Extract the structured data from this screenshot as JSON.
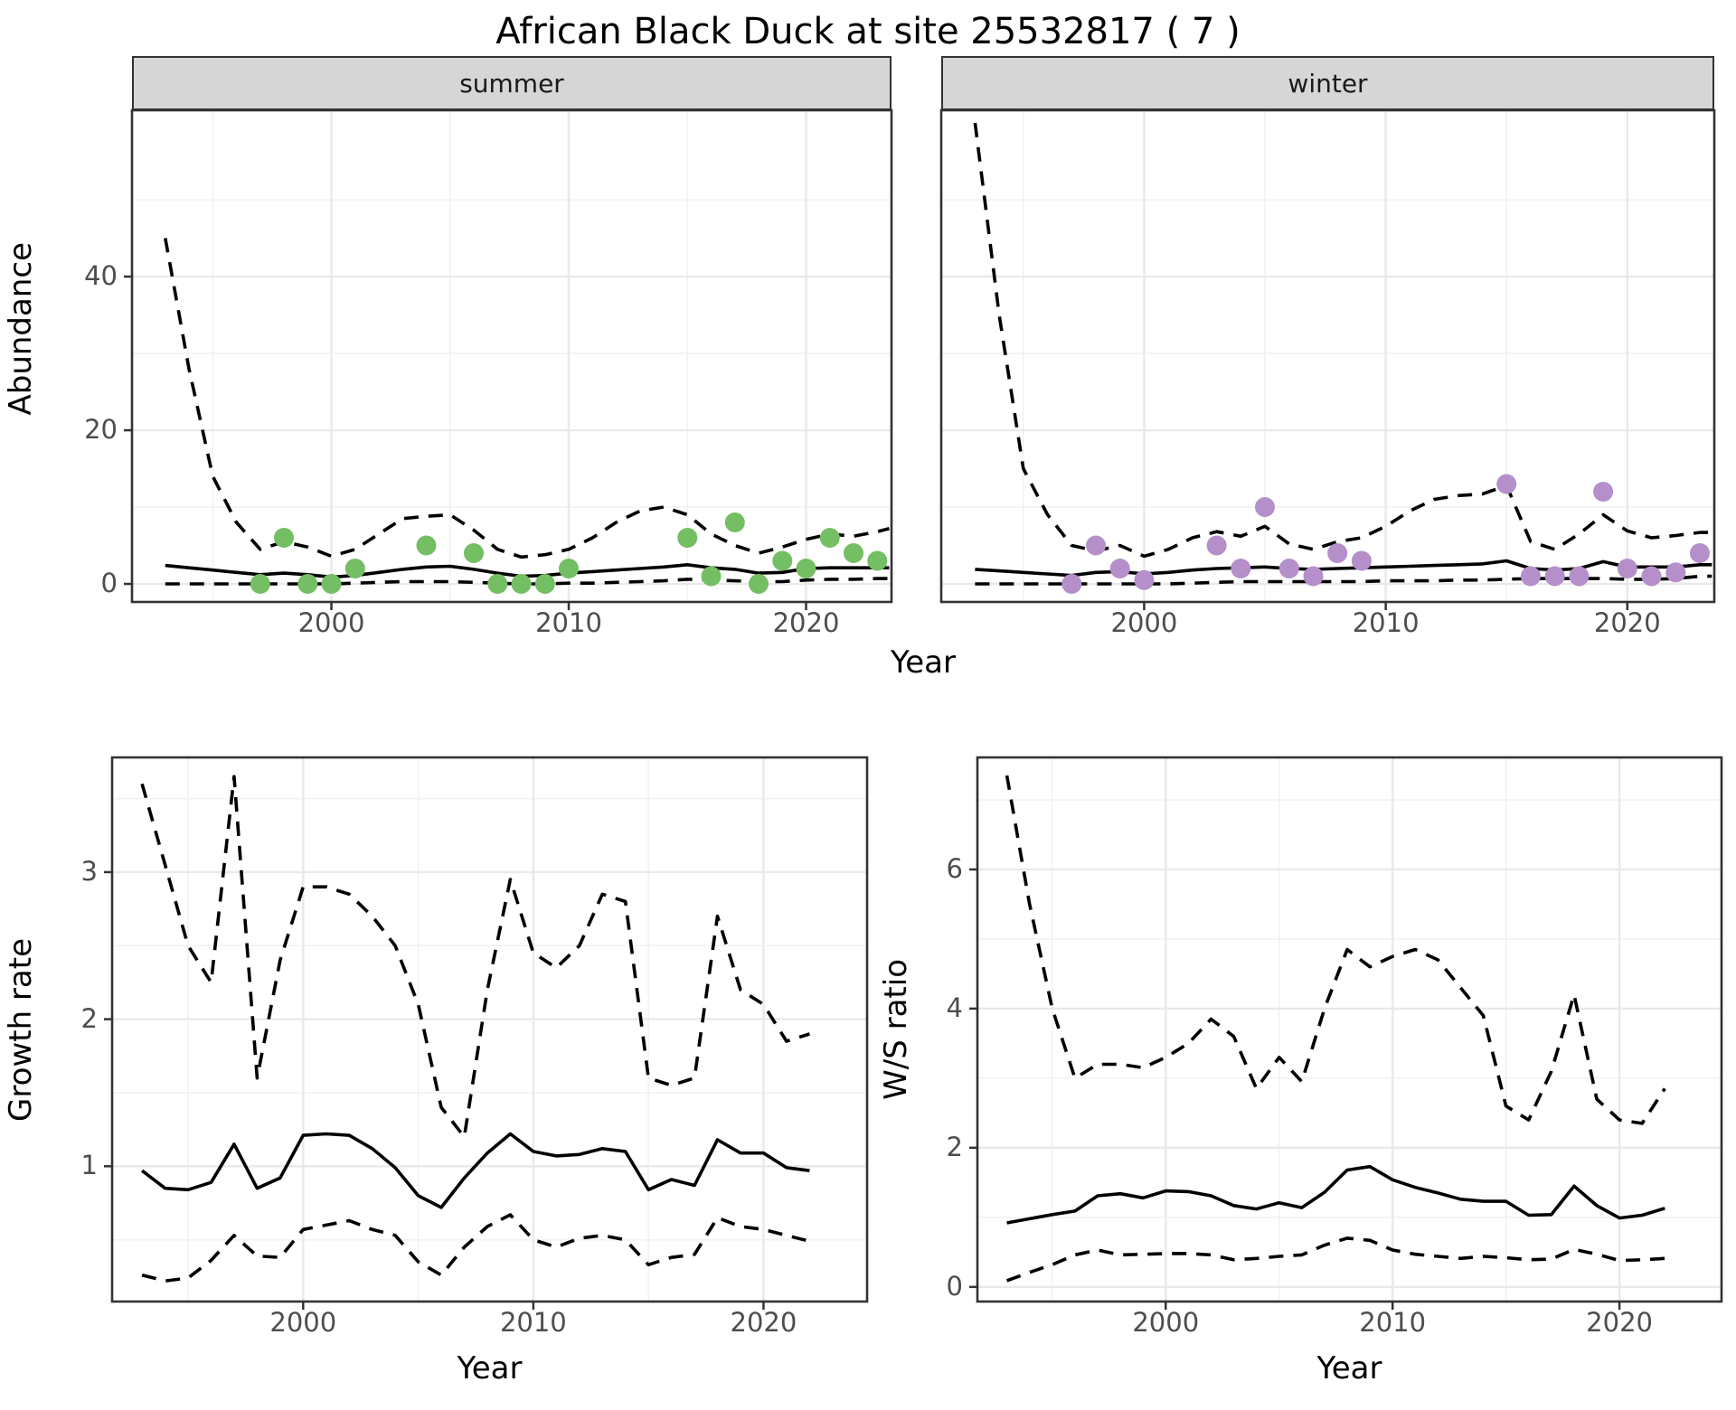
{
  "title": "African Black Duck at site 25532817 ( 7 )",
  "facets": {
    "summer_label": "summer",
    "winter_label": "winter"
  },
  "axes": {
    "top_y_title": "Abundance",
    "top_x_title": "Year",
    "bottom_left_y_title": "Growth rate",
    "bottom_left_x_title": "Year",
    "bottom_right_y_title": "W/S ratio",
    "bottom_right_x_title": "Year"
  },
  "colors": {
    "summer_point": "#74BE63",
    "winter_point": "#B48FC9",
    "line": "#000000",
    "grid_major": "#E9E9E9",
    "grid_minor": "#F2F2F2",
    "panel_border": "#333333",
    "strip_bg": "#D6D6D6",
    "tick_text": "#4D4D4D"
  },
  "chart_data": [
    {
      "id": "summer",
      "type": "line",
      "facet_label": "summer",
      "x_axis_title": "Year",
      "y_axis_title": "Abundance",
      "xlim": [
        1991.6,
        2023.6
      ],
      "ylim": [
        -2.35,
        61.65
      ],
      "xticks": [
        2000,
        2010,
        2020
      ],
      "xminor": [
        1995,
        2005,
        2015
      ],
      "yticks": [
        0,
        20,
        40
      ],
      "yminor": [
        10,
        30,
        50
      ],
      "show_y_ticks": true,
      "x_fit": [
        1993,
        1994,
        1995,
        1996,
        1997,
        1998,
        1999,
        2000,
        2001,
        2002,
        2003,
        2004,
        2005,
        2006,
        2007,
        2008,
        2009,
        2010,
        2011,
        2012,
        2013,
        2014,
        2015,
        2016,
        2017,
        2018,
        2019,
        2020,
        2021,
        2022,
        2023,
        2023.5
      ],
      "fit_series": [
        {
          "name": "upper_95ci",
          "style": "dashed",
          "y": [
            45,
            28,
            14,
            8,
            4.5,
            5.5,
            4.8,
            3.6,
            4.5,
            6.5,
            8.5,
            8.8,
            9,
            7,
            4.5,
            3.5,
            3.8,
            4.5,
            6,
            8,
            9.5,
            10,
            9,
            6.5,
            5,
            4,
            4.8,
            5.8,
            6.5,
            6.2,
            6.8,
            7.2
          ]
        },
        {
          "name": "median",
          "style": "solid",
          "y": [
            2.4,
            2.1,
            1.8,
            1.5,
            1.2,
            1.4,
            1.2,
            0.9,
            1.1,
            1.5,
            1.9,
            2.2,
            2.3,
            1.9,
            1.4,
            1,
            1.1,
            1.4,
            1.6,
            1.8,
            2,
            2.2,
            2.5,
            2.1,
            1.9,
            1.4,
            1.5,
            2,
            2.1,
            2.1,
            2.1,
            2.1
          ]
        },
        {
          "name": "lower_95ci",
          "style": "dashed",
          "y": [
            0,
            0,
            0,
            0,
            0,
            0,
            0,
            0,
            0.1,
            0.2,
            0.3,
            0.3,
            0.3,
            0.2,
            0.1,
            0,
            0,
            0.1,
            0.1,
            0.2,
            0.3,
            0.4,
            0.6,
            0.5,
            0.4,
            0.3,
            0.3,
            0.5,
            0.6,
            0.6,
            0.7,
            0.7
          ]
        }
      ],
      "points": {
        "name": "observed_summer_counts",
        "color": "#74BE63",
        "x": [
          1997,
          1998,
          1999,
          2000,
          2001,
          2004,
          2006,
          2007,
          2008,
          2009,
          2010,
          2015,
          2016,
          2017,
          2018,
          2019,
          2020,
          2021,
          2022,
          2023
        ],
        "y": [
          0,
          6,
          0,
          0,
          2,
          5,
          4,
          0,
          0,
          0,
          2,
          6,
          1,
          8,
          0,
          3,
          2,
          6,
          4,
          3
        ]
      }
    },
    {
      "id": "winter",
      "type": "line",
      "facet_label": "winter",
      "x_axis_title": "Year",
      "y_axis_title": "Abundance",
      "xlim": [
        1991.6,
        2023.6
      ],
      "ylim": [
        -2.35,
        61.65
      ],
      "xticks": [
        2000,
        2010,
        2020
      ],
      "xminor": [
        1995,
        2005,
        2015
      ],
      "yticks": [
        0,
        20,
        40
      ],
      "yminor": [
        10,
        30,
        50
      ],
      "show_y_ticks": false,
      "x_fit": [
        1993,
        1994,
        1995,
        1996,
        1997,
        1998,
        1999,
        2000,
        2001,
        2002,
        2003,
        2004,
        2005,
        2006,
        2007,
        2008,
        2009,
        2010,
        2011,
        2012,
        2013,
        2014,
        2015,
        2016,
        2017,
        2018,
        2019,
        2020,
        2021,
        2022,
        2023,
        2023.5
      ],
      "fit_series": [
        {
          "name": "upper_95ci",
          "style": "dashed",
          "y": [
            60,
            35,
            15,
            9,
            5,
            4.3,
            5,
            3.6,
            4.5,
            6,
            6.8,
            6.2,
            7.5,
            5.2,
            4.5,
            5.5,
            6,
            7.5,
            9.5,
            11,
            11.5,
            11.7,
            12.8,
            5.5,
            4.5,
            6.5,
            9,
            6.9,
            6,
            6.3,
            6.7,
            6.7
          ]
        },
        {
          "name": "median",
          "style": "solid",
          "y": [
            1.9,
            1.7,
            1.5,
            1.3,
            1.1,
            1.5,
            1.6,
            1.3,
            1.5,
            1.8,
            2,
            2.1,
            2.2,
            2,
            1.9,
            2,
            2.1,
            2.2,
            2.3,
            2.4,
            2.5,
            2.6,
            3,
            2,
            1.8,
            2,
            2.9,
            2.2,
            2.2,
            2.2,
            2.5,
            2.5
          ]
        },
        {
          "name": "lower_95ci",
          "style": "dashed",
          "y": [
            0,
            0,
            0,
            0,
            0,
            0,
            0,
            0,
            0,
            0.1,
            0.2,
            0.3,
            0.3,
            0.3,
            0.3,
            0.3,
            0.3,
            0.4,
            0.4,
            0.4,
            0.5,
            0.5,
            0.6,
            0.7,
            0.7,
            0.7,
            0.7,
            0.6,
            0.6,
            0.7,
            1,
            1
          ]
        }
      ],
      "points": {
        "name": "observed_winter_counts",
        "color": "#B48FC9",
        "x": [
          1997,
          1998,
          1999,
          2000,
          2003,
          2004,
          2005,
          2006,
          2007,
          2008,
          2009,
          2015,
          2016,
          2017,
          2018,
          2019,
          2020,
          2021,
          2022,
          2023
        ],
        "y": [
          0,
          5,
          2,
          0.5,
          5,
          2,
          10,
          2,
          1,
          4,
          3,
          13,
          1,
          1,
          1,
          12,
          2,
          1,
          1.5,
          4
        ]
      }
    },
    {
      "id": "growth_rate",
      "type": "line",
      "facet_label": null,
      "x_axis_title": "Year",
      "y_axis_title": "Growth rate",
      "xlim": [
        1991.7,
        2024.5
      ],
      "ylim": [
        0.08,
        3.78
      ],
      "xticks": [
        2000,
        2010,
        2020
      ],
      "xminor": [
        1995,
        2005,
        2015
      ],
      "yticks": [
        1,
        2,
        3
      ],
      "yminor": [
        0.5,
        1.5,
        2.5,
        3.5
      ],
      "show_y_ticks": true,
      "x_fit": [
        1993,
        1994,
        1995,
        1996,
        1997,
        1998,
        1999,
        2000,
        2001,
        2002,
        2003,
        2004,
        2005,
        2006,
        2007,
        2008,
        2009,
        2010,
        2011,
        2012,
        2013,
        2014,
        2015,
        2016,
        2017,
        2018,
        2019,
        2020,
        2021,
        2022
      ],
      "fit_series": [
        {
          "name": "upper_95ci",
          "style": "dashed",
          "y": [
            3.6,
            3.05,
            2.5,
            2.25,
            3.65,
            1.6,
            2.4,
            2.9,
            2.9,
            2.85,
            2.7,
            2.5,
            2.1,
            1.4,
            1.2,
            2.2,
            2.95,
            2.45,
            2.35,
            2.5,
            2.85,
            2.8,
            1.6,
            1.55,
            1.6,
            2.7,
            2.2,
            2.1,
            1.85,
            1.9
          ]
        },
        {
          "name": "median",
          "style": "solid",
          "y": [
            0.97,
            0.85,
            0.84,
            0.89,
            1.15,
            0.85,
            0.92,
            1.21,
            1.22,
            1.21,
            1.12,
            0.99,
            0.8,
            0.72,
            0.92,
            1.09,
            1.22,
            1.1,
            1.07,
            1.08,
            1.12,
            1.1,
            0.84,
            0.91,
            0.87,
            1.18,
            1.09,
            1.09,
            0.99,
            0.97
          ]
        },
        {
          "name": "lower_95ci",
          "style": "dashed",
          "y": [
            0.26,
            0.22,
            0.24,
            0.36,
            0.53,
            0.39,
            0.38,
            0.57,
            0.6,
            0.63,
            0.57,
            0.53,
            0.35,
            0.26,
            0.45,
            0.59,
            0.67,
            0.5,
            0.45,
            0.51,
            0.53,
            0.5,
            0.33,
            0.38,
            0.4,
            0.65,
            0.59,
            0.57,
            0.53,
            0.49
          ]
        }
      ],
      "points": null
    },
    {
      "id": "ws_ratio",
      "type": "line",
      "facet_label": null,
      "x_axis_title": "Year",
      "y_axis_title": "W/S ratio",
      "xlim": [
        1991.7,
        2024.5
      ],
      "ylim": [
        -0.21,
        7.61
      ],
      "xticks": [
        2000,
        2010,
        2020
      ],
      "xminor": [
        1995,
        2005,
        2015
      ],
      "yticks": [
        0,
        2,
        4,
        6
      ],
      "yminor": [
        1,
        3,
        5,
        7
      ],
      "show_y_ticks": true,
      "x_fit": [
        1993,
        1994,
        1995,
        1996,
        1997,
        1998,
        1999,
        2000,
        2001,
        2002,
        2003,
        2004,
        2005,
        2006,
        2007,
        2008,
        2009,
        2010,
        2011,
        2012,
        2013,
        2014,
        2015,
        2016,
        2017,
        2018,
        2019,
        2020,
        2021,
        2022
      ],
      "fit_series": [
        {
          "name": "upper_95ci",
          "style": "dashed",
          "y": [
            7.35,
            5.5,
            4,
            3,
            3.2,
            3.2,
            3.15,
            3.3,
            3.5,
            3.85,
            3.6,
            2.85,
            3.3,
            2.95,
            4,
            4.85,
            4.6,
            4.75,
            4.85,
            4.7,
            4.3,
            3.9,
            2.6,
            2.4,
            3.1,
            4.2,
            2.7,
            2.4,
            2.35,
            2.85
          ]
        },
        {
          "name": "median",
          "style": "solid",
          "y": [
            0.92,
            0.98,
            1.04,
            1.09,
            1.31,
            1.34,
            1.28,
            1.38,
            1.37,
            1.31,
            1.17,
            1.12,
            1.21,
            1.14,
            1.36,
            1.68,
            1.73,
            1.54,
            1.43,
            1.35,
            1.26,
            1.23,
            1.23,
            1.03,
            1.04,
            1.45,
            1.17,
            0.99,
            1.03,
            1.13
          ]
        },
        {
          "name": "lower_95ci",
          "style": "dashed",
          "y": [
            0.09,
            0.21,
            0.32,
            0.46,
            0.53,
            0.46,
            0.47,
            0.48,
            0.48,
            0.46,
            0.39,
            0.41,
            0.44,
            0.46,
            0.6,
            0.7,
            0.67,
            0.53,
            0.47,
            0.44,
            0.41,
            0.44,
            0.42,
            0.39,
            0.4,
            0.54,
            0.47,
            0.38,
            0.39,
            0.41
          ]
        }
      ],
      "points": null
    }
  ]
}
